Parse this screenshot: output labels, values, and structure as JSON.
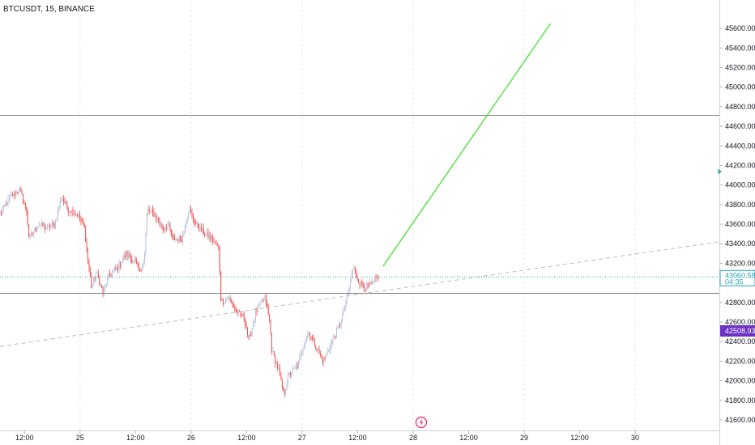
{
  "header": {
    "symbol_label": "BTCUSDT, 15, BINANCE"
  },
  "colors": {
    "up": "#26a69a",
    "down": "#ef5350",
    "candle_up": "#b9c3dd",
    "candle_down": "#ef5350",
    "trend_up": "#31e01f",
    "trend_dashed": "#b8bcc6",
    "hline": "#787b86",
    "price_tag": "#2aa7b5",
    "alert_tag": "#6c32c4",
    "lightning": "#e91e63"
  },
  "chart_data": {
    "type": "candlestick",
    "title": "",
    "xlabel": "",
    "ylabel": "",
    "ylim": [
      41550,
      45750
    ],
    "y_ticks": [
      "41600.00",
      "41800.00",
      "42000.00",
      "42200.00",
      "42400.00",
      "42600.00",
      "42800.00",
      "43000.00",
      "43200.00",
      "43400.00",
      "43600.00",
      "43800.00",
      "44000.00",
      "44200.00",
      "44400.00",
      "44600.00",
      "44800.00",
      "45000.00",
      "45200.00",
      "45400.00",
      "45600.00"
    ],
    "x_ticks": [
      "12:00",
      "25",
      "12:00",
      "26",
      "12:00",
      "27",
      "12:00",
      "28",
      "12:00",
      "29",
      "12:00",
      "30"
    ],
    "x_tick_times": [
      -12,
      0,
      12,
      24,
      36,
      48,
      60,
      72,
      84,
      96,
      108,
      120
    ],
    "x_time_unit": "hours from 25 00:00",
    "xlim": [
      -17.3,
      138.2
    ],
    "current_price": {
      "value": "43060.58",
      "countdown": "04:35"
    },
    "alert_price": "42508.93",
    "horizontal_lines": [
      44720,
      42900
    ],
    "trendline_dashed": {
      "from": [
        -17.3,
        42350
      ],
      "to": [
        138.2,
        43420
      ]
    },
    "trendline_green": {
      "from": [
        65.5,
        43170
      ],
      "to": [
        101.7,
        45650
      ]
    },
    "waypoints": [
      [
        -17.3,
        43700
      ],
      [
        -15,
        43880
      ],
      [
        -13,
        43950
      ],
      [
        -11.5,
        43720
      ],
      [
        -11,
        43450
      ],
      [
        -9,
        43600
      ],
      [
        -7,
        43560
      ],
      [
        -5.5,
        43600
      ],
      [
        -4,
        43880
      ],
      [
        -2.5,
        43750
      ],
      [
        -0.5,
        43700
      ],
      [
        1,
        43550
      ],
      [
        1.5,
        43300
      ],
      [
        2.5,
        42950
      ],
      [
        3.5,
        43100
      ],
      [
        5,
        42900
      ],
      [
        6,
        43050
      ],
      [
        8,
        43150
      ],
      [
        10,
        43300
      ],
      [
        12,
        43200
      ],
      [
        13,
        43100
      ],
      [
        14,
        43300
      ],
      [
        14.5,
        43750
      ],
      [
        16,
        43700
      ],
      [
        18,
        43550
      ],
      [
        19,
        43600
      ],
      [
        20,
        43450
      ],
      [
        22,
        43450
      ],
      [
        23.5,
        43750
      ],
      [
        25,
        43600
      ],
      [
        27,
        43500
      ],
      [
        28.5,
        43450
      ],
      [
        30,
        43350
      ],
      [
        30.5,
        42800
      ],
      [
        32,
        42850
      ],
      [
        34,
        42700
      ],
      [
        35.5,
        42650
      ],
      [
        36.5,
        42400
      ],
      [
        38,
        42700
      ],
      [
        40,
        42850
      ],
      [
        41,
        42600
      ],
      [
        41.5,
        42300
      ],
      [
        43,
        42100
      ],
      [
        44,
        41850
      ],
      [
        45,
        42050
      ],
      [
        47,
        42150
      ],
      [
        48.5,
        42400
      ],
      [
        49.5,
        42500
      ],
      [
        51,
        42350
      ],
      [
        52.5,
        42200
      ],
      [
        54,
        42350
      ],
      [
        56,
        42550
      ],
      [
        57.5,
        42800
      ],
      [
        59,
        43150
      ],
      [
        60.5,
        43000
      ],
      [
        62,
        42950
      ],
      [
        63.5,
        43000
      ],
      [
        64.5,
        43080
      ]
    ]
  }
}
